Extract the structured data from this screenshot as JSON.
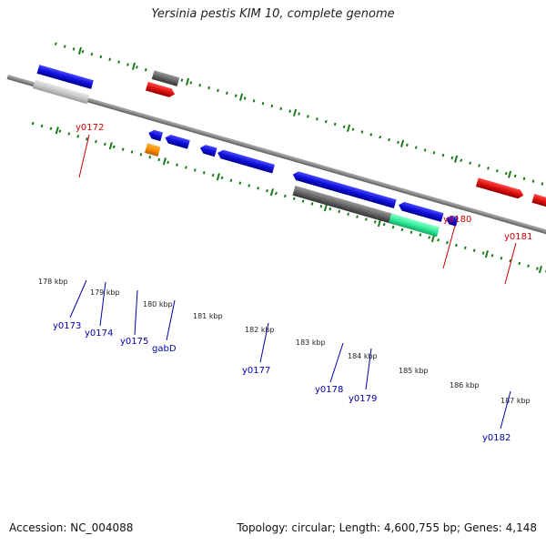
{
  "title": "Yersinia pestis KIM 10, complete genome",
  "footer": {
    "accession": "Accession: NC_004088",
    "genome_info": "Topology: circular; Length: 4,600,755 bp; Genes: 4,148"
  },
  "colors": {
    "backbone": "#8a8a8a",
    "tick": "#1a7a1a",
    "forward_gene": "#e01010",
    "reverse_gene": "#1010dd",
    "label_forward": "#cc0000",
    "label_reverse": "#0000aa",
    "gray_feature": "#666666",
    "light_gray_feature": "#c8c8c8",
    "orange_feature": "#ff8c00",
    "green_feature": "#33ee99"
  },
  "scale_labels": [
    "178 kbp",
    "179 kbp",
    "180 kbp",
    "181 kbp",
    "182 kbp",
    "183 kbp",
    "184 kbp",
    "185 kbp",
    "186 kbp",
    "187 kbp"
  ],
  "forward_gene_labels": [
    "y0172",
    "y0180",
    "y0181"
  ],
  "reverse_gene_labels": [
    "y0173",
    "y0174",
    "y0175",
    "gabD",
    "y0177",
    "y0178",
    "y0179",
    "y0182"
  ]
}
